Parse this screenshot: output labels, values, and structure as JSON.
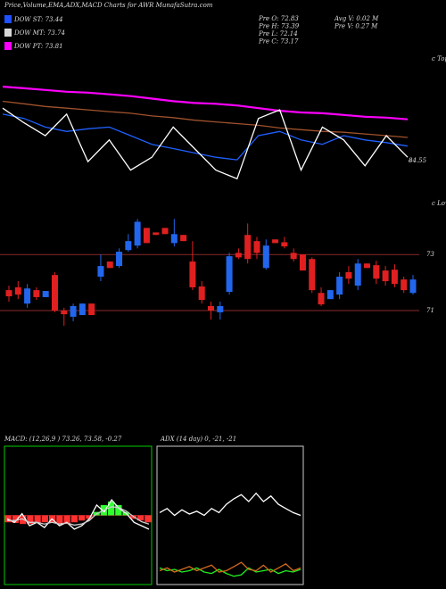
{
  "header": {
    "title": "Price,Volume,EMA,ADX,MACD Charts for AWR MunafaSutra.com",
    "legend": [
      {
        "label": "DOW ST: 73.44",
        "color": "#2050ff"
      },
      {
        "label": "DOW MT: 73.74",
        "color": "#d8d8d8"
      },
      {
        "label": "DOW PT: 73.81",
        "color": "#ff00ff"
      }
    ],
    "info": [
      "Pre  O: 72.83",
      "Pre  H: 73.39",
      "Pre  L: 72.14",
      "Pre  C: 73.17",
      "Avg V: 0.02  M",
      "Pre  V: 0.27  M"
    ]
  },
  "chart_data": [
    {
      "type": "line",
      "annotation": "c Tops",
      "ylim": [
        81.7,
        95
      ],
      "yticks": [
        84.55
      ],
      "series": [
        {
          "color": "#ff00ff",
          "values": [
            92.43,
            92.25,
            92.07,
            91.88,
            91.79,
            91.61,
            91.42,
            91.15,
            90.88,
            90.69,
            90.6,
            90.42,
            90.14,
            89.86,
            89.68,
            89.59,
            89.41,
            89.22,
            89.13,
            88.95
          ]
        },
        {
          "color": "#a0522d",
          "values": [
            90.87,
            90.6,
            90.32,
            90.14,
            89.96,
            89.77,
            89.59,
            89.31,
            89.13,
            88.85,
            88.67,
            88.49,
            88.31,
            88.03,
            87.85,
            87.67,
            87.57,
            87.39,
            87.21,
            87.02
          ]
        },
        {
          "color": "#2060ff",
          "values": [
            89.5,
            89.04,
            88.12,
            87.66,
            87.94,
            88.12,
            87.21,
            86.29,
            85.83,
            85.37,
            84.91,
            84.64,
            87.21,
            87.66,
            86.75,
            86.29,
            87.21,
            86.75,
            86.47,
            86.1
          ]
        },
        {
          "color": "#ffffff",
          "values": [
            90.14,
            88.58,
            87.21,
            89.5,
            84.45,
            86.75,
            83.54,
            84.91,
            88.12,
            85.83,
            83.54,
            82.62,
            89.04,
            89.96,
            83.54,
            88.12,
            86.75,
            84.0,
            87.21,
            84.91
          ]
        }
      ]
    },
    {
      "type": "candlestick",
      "annotation": "c Lows",
      "ylim": [
        70.3,
        74.6
      ],
      "yticks": [
        71,
        73
      ],
      "up_color": "#2266ee",
      "down_color": "#e02020",
      "open": [
        71.73,
        71.83,
        71.25,
        71.73,
        71.48,
        72.27,
        71.0,
        70.78,
        70.84,
        71.25,
        72.21,
        72.75,
        72.59,
        73.16,
        73.32,
        73.95,
        73.79,
        73.95,
        73.41,
        73.7,
        72.75,
        71.86,
        71.16,
        70.94,
        71.67,
        73.06,
        73.7,
        73.48,
        72.52,
        73.54,
        73.44,
        73.06,
        73.0,
        72.84,
        71.63,
        71.41,
        71.57,
        72.37,
        71.89,
        72.68,
        72.62,
        72.43,
        72.46,
        72.11,
        71.63
      ],
      "high": [
        71.89,
        72.05,
        71.95,
        71.83,
        71.7,
        72.37,
        71.1,
        71.25,
        71.25,
        71.25,
        73.0,
        72.75,
        73.22,
        73.73,
        74.27,
        73.95,
        73.79,
        73.95,
        74.27,
        73.7,
        73.48,
        72.05,
        71.32,
        71.32,
        73.06,
        73.22,
        74.11,
        73.63,
        73.54,
        73.54,
        73.63,
        73.22,
        73.0,
        72.9,
        71.83,
        71.73,
        72.37,
        72.59,
        72.84,
        72.68,
        72.78,
        72.59,
        72.65,
        72.21,
        72.27
      ],
      "low": [
        71.32,
        71.41,
        71.1,
        71.38,
        71.48,
        70.94,
        70.46,
        70.62,
        70.84,
        70.84,
        72.05,
        72.52,
        72.52,
        73.1,
        73.22,
        73.41,
        73.7,
        73.73,
        73.29,
        73.48,
        71.73,
        71.25,
        70.68,
        70.68,
        71.57,
        72.84,
        72.68,
        72.84,
        72.46,
        73.41,
        73.22,
        72.75,
        72.43,
        71.63,
        71.16,
        71.41,
        71.41,
        71.95,
        71.73,
        72.52,
        71.95,
        71.89,
        71.83,
        71.63,
        71.57
      ],
      "close": [
        71.51,
        71.57,
        71.79,
        71.48,
        71.7,
        71.0,
        70.87,
        71.16,
        71.25,
        70.84,
        72.59,
        72.52,
        73.1,
        73.48,
        74.17,
        73.41,
        73.7,
        73.73,
        73.73,
        73.48,
        71.83,
        71.38,
        71.0,
        71.16,
        72.94,
        72.9,
        72.84,
        73.06,
        73.32,
        73.41,
        73.29,
        72.84,
        72.43,
        71.73,
        71.22,
        71.73,
        72.21,
        72.14,
        72.68,
        72.52,
        72.14,
        72.05,
        71.95,
        71.73,
        72.11
      ]
    },
    {
      "type": "macd",
      "title": "MACD: (12,26,9 ) 73.26, 73.58, -0.27",
      "ylim": [
        -2,
        2
      ],
      "color": "#00cc00",
      "histogram": [
        -0.2,
        -0.22,
        -0.25,
        -0.25,
        -0.22,
        -0.2,
        -0.22,
        -0.25,
        -0.25,
        -0.2,
        -0.15,
        -0.1,
        0.1,
        0.3,
        0.4,
        0.3,
        0.1,
        -0.1,
        -0.15,
        -0.2
      ],
      "histogram_colors": {
        "negative": "#ff3030",
        "positive": "#30ff30"
      },
      "series": [
        {
          "color": "#ffffff",
          "values": [
            -0.1,
            -0.2,
            0.05,
            -0.3,
            -0.2,
            -0.35,
            -0.1,
            -0.3,
            -0.2,
            -0.4,
            -0.3,
            -0.1,
            0.3,
            0.1,
            0.45,
            0.2,
            0.05,
            -0.2,
            -0.3,
            -0.4
          ]
        },
        {
          "color": "#cccccc",
          "values": [
            -0.15,
            -0.15,
            -0.1,
            -0.2,
            -0.2,
            -0.25,
            -0.2,
            -0.25,
            -0.22,
            -0.28,
            -0.25,
            -0.15,
            0.05,
            0.15,
            0.25,
            0.22,
            0.12,
            -0.05,
            -0.18,
            -0.25
          ]
        }
      ]
    },
    {
      "type": "adx",
      "title": "ADX (14 day) 0, -21, -21",
      "ylim": [
        0,
        100
      ],
      "series": [
        {
          "color": "#ffffff",
          "values": [
            52,
            55,
            50,
            54,
            51,
            53,
            50,
            55,
            52,
            58,
            62,
            65,
            60,
            66,
            60,
            64,
            58,
            55,
            52,
            50
          ]
        },
        {
          "color": "#22ee22",
          "values": [
            12,
            10,
            11,
            9,
            10,
            12,
            9,
            8,
            11,
            8,
            6,
            7,
            12,
            9,
            10,
            11,
            8,
            10,
            9,
            11
          ]
        },
        {
          "color": "#d2691e",
          "values": [
            10,
            12,
            9,
            11,
            13,
            10,
            12,
            14,
            9,
            10,
            13,
            16,
            11,
            10,
            14,
            9,
            12,
            15,
            10,
            12
          ]
        }
      ]
    }
  ]
}
